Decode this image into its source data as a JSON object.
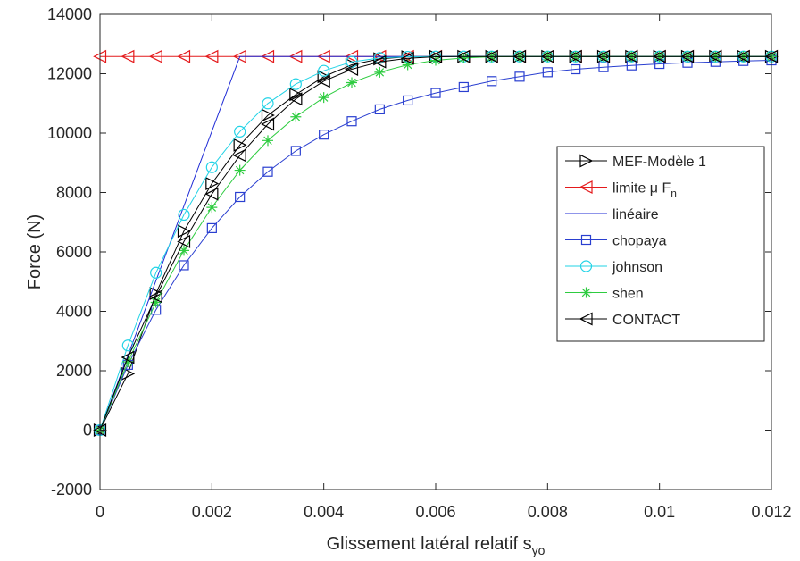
{
  "chart_data": {
    "type": "line",
    "title": "",
    "xlabel": "Glissement latéral relatif s",
    "xlabel_sub": "yo",
    "ylabel": "Force (N)",
    "xlim": [
      0,
      0.012
    ],
    "ylim": [
      -2000,
      14000
    ],
    "xticks": [
      0,
      0.002,
      0.004,
      0.006,
      0.008,
      0.01,
      0.012
    ],
    "xtick_labels": [
      "0",
      "0.002",
      "0.004",
      "0.006",
      "0.008",
      "0.01",
      "0.012"
    ],
    "yticks": [
      -2000,
      0,
      2000,
      4000,
      6000,
      8000,
      10000,
      12000,
      14000
    ],
    "ytick_labels": [
      "-2000",
      "0",
      "2000",
      "4000",
      "6000",
      "8000",
      "10000",
      "12000",
      "14000"
    ],
    "grid": false,
    "legend_position": "right",
    "series": [
      {
        "name": "MEF-Modèle 1",
        "color": "#000000",
        "marker": "triangle-right",
        "x": [
          0,
          0.0005,
          0.001,
          0.0015,
          0.002,
          0.0025,
          0.003,
          0.0035,
          0.004,
          0.0045,
          0.005,
          0.0055,
          0.006,
          0.0065,
          0.007,
          0.0075,
          0.008,
          0.0085,
          0.009,
          0.0095,
          0.01,
          0.0105,
          0.011,
          0.0115,
          0.012
        ],
        "y": [
          0,
          1900,
          4600,
          6700,
          8300,
          9600,
          10600,
          11300,
          11900,
          12300,
          12500,
          12570,
          12580,
          12580,
          12580,
          12580,
          12580,
          12580,
          12580,
          12580,
          12580,
          12580,
          12580,
          12580,
          12580
        ]
      },
      {
        "name": "limite μ F",
        "name_sub": "n",
        "color": "#e41a1c",
        "marker": "triangle-left",
        "x": [
          0,
          0.0005,
          0.001,
          0.0015,
          0.002,
          0.0025,
          0.003,
          0.0035,
          0.004,
          0.0045,
          0.005,
          0.0055,
          0.006,
          0.0065,
          0.007,
          0.0075,
          0.008,
          0.0085,
          0.009,
          0.0095,
          0.01,
          0.0105,
          0.011,
          0.0115,
          0.012
        ],
        "y": [
          12580,
          12580,
          12580,
          12580,
          12580,
          12580,
          12580,
          12580,
          12580,
          12580,
          12580,
          12580,
          12580,
          12580,
          12580,
          12580,
          12580,
          12580,
          12580,
          12580,
          12580,
          12580,
          12580,
          12580,
          12580
        ]
      },
      {
        "name": "linéaire",
        "color": "#1f2bd6",
        "marker": "none",
        "x": [
          0,
          0.0025,
          0.012
        ],
        "y": [
          0,
          12580,
          12580
        ]
      },
      {
        "name": "chopaya",
        "color": "#2a3fd0",
        "marker": "square",
        "x": [
          0,
          0.0005,
          0.001,
          0.0015,
          0.002,
          0.0025,
          0.003,
          0.0035,
          0.004,
          0.0045,
          0.005,
          0.0055,
          0.006,
          0.0065,
          0.007,
          0.0075,
          0.008,
          0.0085,
          0.009,
          0.0095,
          0.01,
          0.0105,
          0.011,
          0.0115,
          0.012
        ],
        "y": [
          0,
          2200,
          4050,
          5550,
          6800,
          7850,
          8700,
          9400,
          9950,
          10400,
          10800,
          11100,
          11350,
          11550,
          11750,
          11900,
          12050,
          12150,
          12220,
          12280,
          12330,
          12370,
          12400,
          12430,
          12450
        ]
      },
      {
        "name": "johnson",
        "color": "#22d3e6",
        "marker": "circle",
        "x": [
          0,
          0.0005,
          0.001,
          0.0015,
          0.002,
          0.0025,
          0.003,
          0.0035,
          0.004,
          0.0045,
          0.005,
          0.0055,
          0.006,
          0.0065,
          0.007,
          0.0075,
          0.008,
          0.0085,
          0.009,
          0.0095,
          0.01,
          0.0105,
          0.011,
          0.0115,
          0.012
        ],
        "y": [
          0,
          2850,
          5300,
          7250,
          8850,
          10050,
          11000,
          11650,
          12100,
          12400,
          12530,
          12570,
          12580,
          12580,
          12580,
          12580,
          12580,
          12580,
          12580,
          12580,
          12580,
          12580,
          12580,
          12580,
          12580
        ]
      },
      {
        "name": "shen",
        "color": "#2ecc40",
        "marker": "star",
        "x": [
          0,
          0.0005,
          0.001,
          0.0015,
          0.002,
          0.0025,
          0.003,
          0.0035,
          0.004,
          0.0045,
          0.005,
          0.0055,
          0.006,
          0.0065,
          0.007,
          0.0075,
          0.008,
          0.0085,
          0.009,
          0.0095,
          0.01,
          0.0105,
          0.011,
          0.0115,
          0.012
        ],
        "y": [
          0,
          2300,
          4300,
          6050,
          7500,
          8750,
          9750,
          10550,
          11200,
          11700,
          12050,
          12300,
          12450,
          12530,
          12570,
          12580,
          12580,
          12580,
          12580,
          12580,
          12580,
          12580,
          12580,
          12580,
          12580
        ]
      },
      {
        "name": "CONTACT",
        "color": "#000000",
        "marker": "triangle-left",
        "x": [
          0,
          0.0005,
          0.001,
          0.0015,
          0.002,
          0.0025,
          0.003,
          0.0035,
          0.004,
          0.0045,
          0.005,
          0.0055,
          0.006,
          0.0065,
          0.007,
          0.0075,
          0.008,
          0.0085,
          0.009,
          0.0095,
          0.01,
          0.0105,
          0.011,
          0.0115,
          0.012
        ],
        "y": [
          0,
          2450,
          4500,
          6350,
          7950,
          9250,
          10300,
          11150,
          11750,
          12150,
          12400,
          12520,
          12570,
          12580,
          12580,
          12580,
          12580,
          12580,
          12580,
          12580,
          12580,
          12580,
          12580,
          12580,
          12580
        ]
      }
    ]
  }
}
